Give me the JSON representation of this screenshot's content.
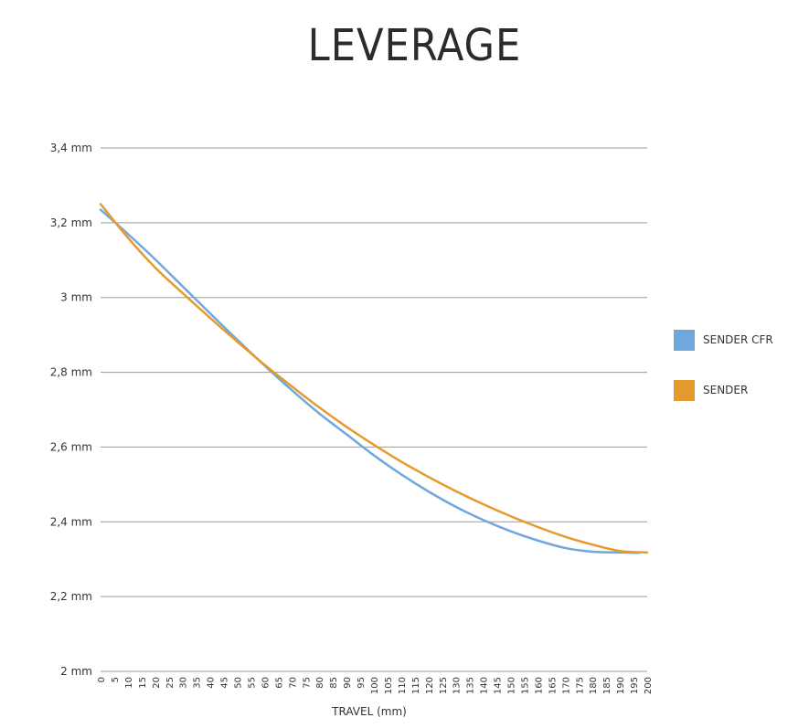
{
  "chart_data": {
    "type": "line",
    "title": "LEVERAGE",
    "xlabel": "TRAVEL (mm)",
    "ylabel": "",
    "x_ticks": [
      0,
      5,
      10,
      15,
      20,
      25,
      30,
      35,
      40,
      45,
      50,
      55,
      60,
      65,
      70,
      75,
      80,
      85,
      90,
      95,
      100,
      105,
      110,
      115,
      120,
      125,
      130,
      135,
      140,
      145,
      150,
      155,
      160,
      165,
      170,
      175,
      180,
      185,
      190,
      195,
      200
    ],
    "y_ticks": [
      {
        "value": 2.0,
        "label": "2 mm"
      },
      {
        "value": 2.2,
        "label": "2,2 mm"
      },
      {
        "value": 2.4,
        "label": "2,4 mm"
      },
      {
        "value": 2.6,
        "label": "2,6 mm"
      },
      {
        "value": 2.8,
        "label": "2,8 mm"
      },
      {
        "value": 3.0,
        "label": "3 mm"
      },
      {
        "value": 3.2,
        "label": "3,2 mm"
      },
      {
        "value": 3.4,
        "label": "3,4 mm"
      }
    ],
    "xlim": [
      0,
      200
    ],
    "ylim": [
      2.0,
      3.4
    ],
    "grid": true,
    "legend_position": "right",
    "series": [
      {
        "name": "SENDER CFR",
        "color": "#6fa8dc",
        "x": [
          0,
          10,
          20,
          30,
          40,
          50,
          60,
          70,
          80,
          90,
          100,
          110,
          120,
          130,
          140,
          150,
          160,
          170,
          180,
          190,
          197
        ],
        "values": [
          3.235,
          3.17,
          3.102,
          3.03,
          2.958,
          2.887,
          2.818,
          2.752,
          2.69,
          2.634,
          2.578,
          2.527,
          2.481,
          2.44,
          2.405,
          2.375,
          2.35,
          2.33,
          2.32,
          2.318,
          2.317
        ]
      },
      {
        "name": "SENDER",
        "color": "#e69a2e",
        "x": [
          0,
          10,
          20,
          30,
          40,
          50,
          60,
          70,
          80,
          90,
          100,
          110,
          120,
          130,
          140,
          150,
          160,
          170,
          180,
          190,
          200
        ],
        "values": [
          3.25,
          3.16,
          3.08,
          3.012,
          2.946,
          2.882,
          2.82,
          2.762,
          2.706,
          2.654,
          2.606,
          2.561,
          2.52,
          2.482,
          2.447,
          2.415,
          2.386,
          2.36,
          2.339,
          2.322,
          2.318
        ]
      }
    ]
  }
}
